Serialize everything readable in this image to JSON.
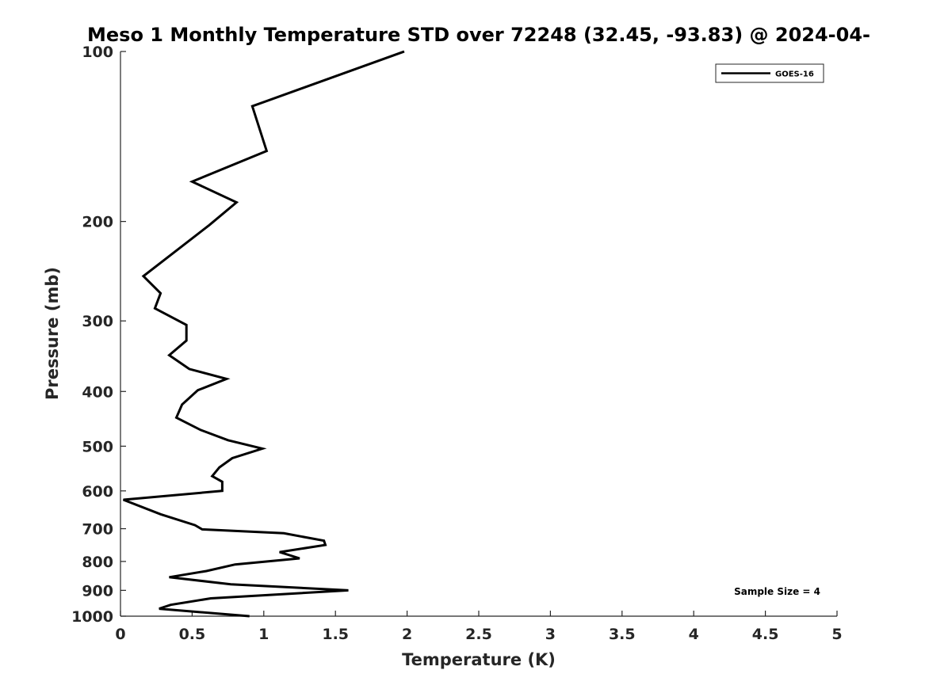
{
  "chart_data": {
    "type": "line",
    "title": "Meso 1 Monthly Temperature STD over 72248 (32.45, -93.83) @ 2024-04-",
    "xlabel": "Temperature (K)",
    "ylabel": "Pressure (mb)",
    "xlim": [
      0,
      5
    ],
    "ylim": [
      100,
      1000
    ],
    "y_scale": "log",
    "y_reversed": true,
    "x_ticks": [
      "0",
      "0.5",
      "1",
      "1.5",
      "2",
      "2.5",
      "3",
      "3.5",
      "4",
      "4.5",
      "5"
    ],
    "y_ticks": [
      "100",
      "200",
      "300",
      "400",
      "500",
      "600",
      "700",
      "800",
      "900",
      "1000"
    ],
    "grid": false,
    "legend_position": "top-right",
    "annotation": "Sample Size = 4",
    "series": [
      {
        "name": "GOES-16",
        "color": "#000000",
        "points": [
          [
            1.98,
            100
          ],
          [
            0.92,
            125
          ],
          [
            1.02,
            150
          ],
          [
            0.5,
            170
          ],
          [
            0.81,
            185
          ],
          [
            0.62,
            203
          ],
          [
            0.16,
            250
          ],
          [
            0.28,
            268
          ],
          [
            0.24,
            285
          ],
          [
            0.46,
            305
          ],
          [
            0.46,
            325
          ],
          [
            0.34,
            345
          ],
          [
            0.48,
            365
          ],
          [
            0.74,
            380
          ],
          [
            0.54,
            398
          ],
          [
            0.43,
            422
          ],
          [
            0.39,
            445
          ],
          [
            0.56,
            468
          ],
          [
            0.75,
            488
          ],
          [
            0.99,
            505
          ],
          [
            0.78,
            525
          ],
          [
            0.69,
            545
          ],
          [
            0.64,
            565
          ],
          [
            0.71,
            578
          ],
          [
            0.71,
            600
          ],
          [
            0.02,
            622
          ],
          [
            0.28,
            660
          ],
          [
            0.52,
            690
          ],
          [
            0.57,
            702
          ],
          [
            1.14,
            713
          ],
          [
            1.42,
            735
          ],
          [
            1.43,
            748
          ],
          [
            1.11,
            770
          ],
          [
            1.25,
            790
          ],
          [
            0.8,
            810
          ],
          [
            0.6,
            832
          ],
          [
            0.34,
            853
          ],
          [
            0.77,
            878
          ],
          [
            1.59,
            900
          ],
          [
            0.63,
            930
          ],
          [
            0.35,
            955
          ],
          [
            0.27,
            970
          ],
          [
            0.9,
            1000
          ]
        ]
      }
    ]
  }
}
